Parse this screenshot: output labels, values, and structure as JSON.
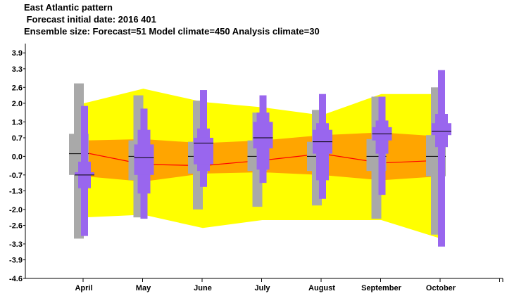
{
  "header": {
    "title": "East Atlantic pattern",
    "subtitle": " Forecast initial date: 2016 401",
    "ensemble": "Ensemble size: Forecast=51 Model climate=450 Analysis climate=30"
  },
  "chart_data": {
    "type": "box",
    "categories": [
      "April",
      "May",
      "June",
      "July",
      "August",
      "September",
      "October"
    ],
    "yticks": [
      "-4.6",
      "-3.9",
      "-3.3",
      "-2.6",
      "-2.0",
      "-1.3",
      "-0.7",
      "0.0",
      "0.7",
      "1.3",
      "2.0",
      "2.6",
      "3.3",
      "3.9"
    ],
    "ylim": [
      -4.6,
      4.25
    ],
    "analysis_climate_band": {
      "outer_low": [
        -2.3,
        -2.2,
        -2.7,
        -2.4,
        -2.4,
        -2.4,
        -3.1
      ],
      "outer_high": [
        2.0,
        2.55,
        2.05,
        1.85,
        1.55,
        2.35,
        2.35
      ],
      "inner_low": [
        -0.75,
        -0.95,
        -0.65,
        -0.6,
        -0.7,
        -0.9,
        -0.75
      ],
      "inner_high": [
        0.6,
        0.65,
        0.5,
        0.6,
        0.8,
        0.9,
        0.75
      ],
      "median": [
        0.15,
        -0.3,
        -0.35,
        -0.15,
        0.1,
        -0.25,
        -0.15
      ]
    },
    "model_climate": [
      {
        "min": -3.1,
        "q1": -0.7,
        "median": 0.1,
        "q3": 0.85,
        "max": 2.75
      },
      {
        "min": -2.3,
        "q1": -0.9,
        "median": 0.0,
        "q3": 0.6,
        "max": 2.3
      },
      {
        "min": -2.0,
        "q1": -0.65,
        "median": 0.0,
        "q3": 0.55,
        "max": 2.1
      },
      {
        "min": -1.9,
        "q1": -0.55,
        "median": 0.0,
        "q3": 0.6,
        "max": 1.65
      },
      {
        "min": -1.85,
        "q1": -0.55,
        "median": 0.0,
        "q3": 0.55,
        "max": 1.75
      },
      {
        "min": -2.35,
        "q1": -0.55,
        "median": 0.0,
        "q3": 0.65,
        "max": 2.25
      },
      {
        "min": -2.95,
        "q1": -0.75,
        "median": 0.0,
        "q3": 0.8,
        "max": 2.6
      }
    ],
    "forecast": [
      {
        "min": -3.0,
        "p10": -1.2,
        "q1": -0.7,
        "median": -0.7,
        "q3": -0.6,
        "p90": -0.2,
        "max": 1.9
      },
      {
        "min": -2.35,
        "p10": -1.4,
        "q1": -0.7,
        "median": -0.05,
        "q3": 0.45,
        "p90": 1.0,
        "max": 1.8
      },
      {
        "min": -1.15,
        "p10": -0.55,
        "q1": -0.3,
        "median": 0.5,
        "q3": 0.7,
        "p90": 1.05,
        "max": 2.5
      },
      {
        "min": -1.0,
        "p10": -0.5,
        "q1": 0.3,
        "median": 0.7,
        "q3": 1.3,
        "p90": 1.65,
        "max": 2.3
      },
      {
        "min": -1.6,
        "p10": -0.9,
        "q1": 0.1,
        "median": 0.55,
        "q3": 1.0,
        "p90": 1.25,
        "max": 2.35
      },
      {
        "min": -1.45,
        "p10": 0.1,
        "q1": 0.6,
        "median": 0.85,
        "q3": 1.1,
        "p90": 1.35,
        "max": 2.25
      },
      {
        "min": -3.4,
        "p10": 0.35,
        "q1": 0.8,
        "median": 0.95,
        "q3": 1.25,
        "p90": 1.6,
        "max": 3.25
      }
    ],
    "colors": {
      "outer_band": "#ffff00",
      "inner_band": "#ffa500",
      "median_line": "#ff0000",
      "model_climate": "#a9a9a9",
      "forecast": "#9966ee",
      "median_mark": "#000000"
    }
  }
}
